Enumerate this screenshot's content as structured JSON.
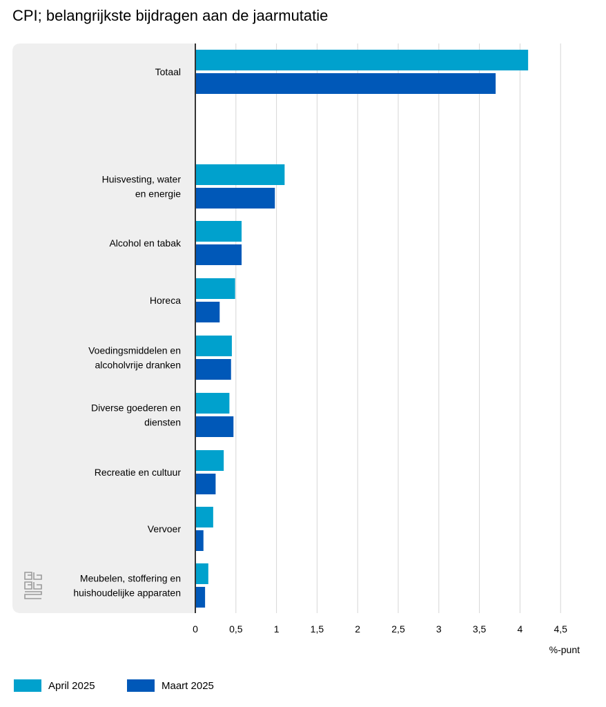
{
  "chart_data": {
    "type": "bar",
    "orientation": "horizontal",
    "title": "CPI; belangrijkste bijdragen aan de jaarmutatie",
    "xlabel": "%-punt",
    "xlim": [
      0,
      4.5
    ],
    "ticks": [
      "0",
      "0,5",
      "1",
      "1,5",
      "2",
      "2,5",
      "3",
      "3,5",
      "4",
      "4,5"
    ],
    "tick_values": [
      0,
      0.5,
      1,
      1.5,
      2,
      2.5,
      3,
      3.5,
      4,
      4.5
    ],
    "grid": true,
    "legend_position": "bottom-left",
    "categories": [
      [
        "Totaal"
      ],
      [
        "Huisvesting, water",
        "en energie"
      ],
      [
        "Alcohol en tabak"
      ],
      [
        "Horeca"
      ],
      [
        "Voedingsmiddelen en",
        "alcoholvrije dranken"
      ],
      [
        "Diverse goederen en",
        "diensten"
      ],
      [
        "Recreatie en cultuur"
      ],
      [
        "Vervoer"
      ],
      [
        "Meubelen, stoffering en",
        "huishoudelijke apparaten"
      ]
    ],
    "series": [
      {
        "name": "April 2025",
        "color": "#00a1cd",
        "values": [
          4.1,
          1.1,
          0.57,
          0.49,
          0.45,
          0.42,
          0.35,
          0.22,
          0.16
        ]
      },
      {
        "name": "Maart 2025",
        "color": "#0058b8",
        "values": [
          3.7,
          0.98,
          0.57,
          0.3,
          0.44,
          0.47,
          0.25,
          0.1,
          0.12
        ]
      }
    ]
  },
  "colors": {
    "panel": "#efefef",
    "grid": "#d6d6d6",
    "axis": "#333333"
  }
}
